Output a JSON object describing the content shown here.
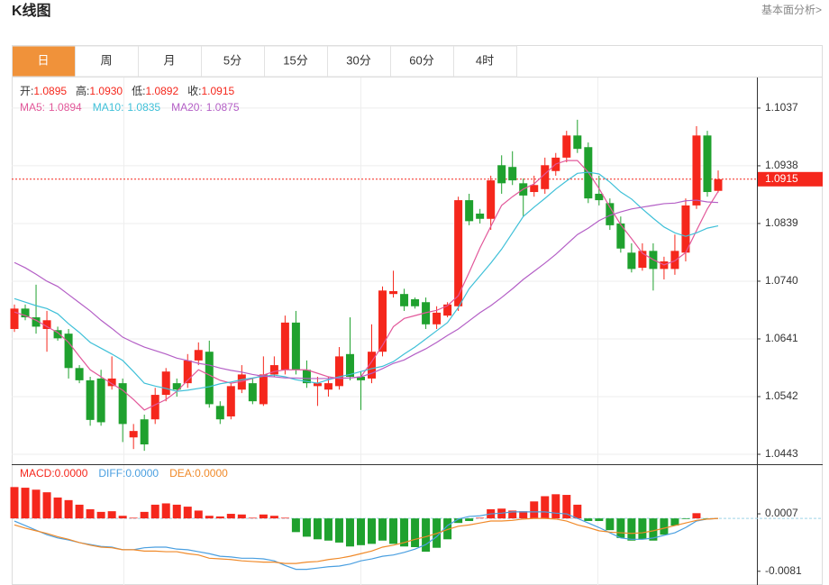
{
  "header": {
    "title": "K线图",
    "link": "基本面分析>"
  },
  "tabs": {
    "items": [
      "日",
      "周",
      "月",
      "5分",
      "15分",
      "30分",
      "60分",
      "4时"
    ],
    "active": 0
  },
  "chart_data": [
    {
      "type": "candlestick",
      "up_color": "#f5271c",
      "down_color": "#1fa12e",
      "ylim": [
        1.0426,
        1.1091
      ],
      "yticks": [
        1.0443,
        1.0542,
        1.0641,
        {
          "value": 1.074,
          "label": "1.0740"
        },
        1.0839,
        1.0938,
        1.1037
      ],
      "grid": true,
      "ohlc_info": [
        {
          "name": "开:",
          "value": 1.0895
        },
        {
          "name": "高:",
          "value": 1.093,
          "value_label": "1.0930"
        },
        {
          "name": "低:",
          "value": 1.0892
        },
        {
          "name": "收:",
          "value": 1.0915
        }
      ],
      "last_price": 1.0915,
      "open": [
        1.0658,
        1.0693,
        1.0678,
        1.0658,
        1.0656,
        1.065,
        1.0591,
        1.057,
        1.0573,
        1.056,
        1.0565,
        1.0472,
        1.0503,
        1.0503,
        1.0545,
        1.0565,
        1.0565,
        1.0604,
        1.0619,
        1.0526,
        1.0508,
        1.0554,
        1.0565,
        1.0529,
        1.058,
        1.0588,
        1.0669,
        1.0588,
        1.056,
        1.0554,
        1.056,
        1.0615,
        1.0576,
        1.0573,
        1.0619,
        1.0718,
        1.0718,
        1.0709,
        1.0704,
        1.0666,
        1.0681,
        1.0697,
        1.0879,
        1.0856,
        1.0847,
        1.0939,
        1.0936,
        1.0908,
        1.0893,
        1.0898,
        1.0929,
        1.0952,
        1.099,
        1.097,
        1.089,
        1.0874,
        1.0839,
        1.0789,
        1.0763,
        1.0792,
        1.0761,
        1.0761,
        1.0789,
        1.087,
        1.099,
        1.0895
      ],
      "high": [
        1.07,
        1.07,
        1.0734,
        1.0689,
        1.0662,
        1.0658,
        1.0596,
        1.0576,
        1.0588,
        1.0611,
        1.0573,
        1.0495,
        1.0511,
        1.0557,
        1.0591,
        1.0573,
        1.0615,
        1.0635,
        1.0638,
        1.0534,
        1.0565,
        1.0596,
        1.0573,
        1.0611,
        1.0611,
        1.0681,
        1.0689,
        1.0604,
        1.0576,
        1.0576,
        1.0627,
        1.0678,
        1.0585,
        1.0666,
        1.0731,
        1.0758,
        1.0727,
        1.0712,
        1.0712,
        1.0697,
        1.0704,
        1.0885,
        1.089,
        1.0864,
        1.0921,
        1.0956,
        1.0963,
        1.0916,
        1.0921,
        1.0952,
        1.096,
        1.0998,
        1.1017,
        1.0978,
        1.0921,
        1.0882,
        1.0851,
        1.0805,
        1.0805,
        1.0805,
        1.0782,
        1.082,
        1.0882,
        1.1006,
        1.0998,
        1.093
      ],
      "low": [
        1.0653,
        1.0673,
        1.065,
        1.0619,
        1.0638,
        1.0573,
        1.0565,
        1.0492,
        1.0492,
        1.0554,
        1.0464,
        1.0452,
        1.0449,
        1.0495,
        1.0534,
        1.0542,
        1.0557,
        1.0596,
        1.0523,
        1.0495,
        1.0503,
        1.0548,
        1.0529,
        1.0526,
        1.0576,
        1.058,
        1.058,
        1.0557,
        1.0526,
        1.0542,
        1.0554,
        1.057,
        1.0519,
        1.0565,
        1.0611,
        1.0712,
        1.0689,
        1.0693,
        1.0658,
        1.0658,
        1.0678,
        1.0689,
        1.0836,
        1.0839,
        1.0828,
        1.089,
        1.0905,
        1.0851,
        1.0885,
        1.089,
        1.0921,
        1.0944,
        1.096,
        1.0874,
        1.087,
        1.0828,
        1.0789,
        1.0755,
        1.0758,
        1.0724,
        1.0743,
        1.0751,
        1.0774,
        1.0864,
        1.0885,
        1.0892
      ],
      "close": [
        1.0693,
        1.0678,
        1.0662,
        1.0673,
        1.0642,
        1.0591,
        1.057,
        1.0502,
        1.0498,
        1.0573,
        1.0495,
        1.0483,
        1.046,
        1.0545,
        1.0585,
        1.0554,
        1.0604,
        1.0622,
        1.0529,
        1.0503,
        1.056,
        1.058,
        1.0534,
        1.058,
        1.0596,
        1.0669,
        1.0588,
        1.0565,
        1.0565,
        1.0565,
        1.0611,
        1.0576,
        1.057,
        1.0619,
        1.0724,
        1.0723,
        1.0697,
        1.0697,
        1.0666,
        1.0686,
        1.07,
        1.0879,
        1.0843,
        1.0847,
        1.0913,
        1.0908,
        1.0913,
        1.0887,
        1.0905,
        1.0939,
        1.0952,
        1.099,
        1.0967,
        1.0882,
        1.0879,
        1.0836,
        1.0796,
        1.0761,
        1.0792,
        1.0761,
        1.0774,
        1.0792,
        1.087,
        1.099,
        1.0893,
        1.0915
      ],
      "lines": [
        {
          "name": "MA5:",
          "color": "#e2589a",
          "current": 1.0894,
          "values": [
            1.0687,
            1.0681,
            1.0673,
            1.0662,
            1.0652,
            1.0635,
            1.0611,
            1.0588,
            1.0576,
            1.0564,
            1.0553,
            1.0537,
            1.0519,
            1.0528,
            1.0537,
            1.0551,
            1.057,
            1.0588,
            1.0579,
            1.057,
            1.0565,
            1.0568,
            1.0573,
            1.0579,
            1.0585,
            1.0588,
            1.0588,
            1.0588,
            1.0582,
            1.0576,
            1.0573,
            1.0574,
            1.0576,
            1.0602,
            1.063,
            1.0662,
            1.0676,
            1.0681,
            1.0686,
            1.069,
            1.0698,
            1.0715,
            1.0755,
            1.0797,
            1.0834,
            1.087,
            1.0885,
            1.0898,
            1.0907,
            1.0924,
            1.0941,
            1.0947,
            1.0947,
            1.0927,
            1.0899,
            1.0867,
            1.0837,
            1.0813,
            1.0788,
            1.0777,
            1.0768,
            1.0775,
            1.0789,
            1.0827,
            1.0864,
            1.0894
          ]
        },
        {
          "name": "MA10:",
          "color": "#3fc0d8",
          "current": 1.0835,
          "values": [
            1.071,
            1.0704,
            1.0698,
            1.0693,
            1.0684,
            1.0667,
            1.0652,
            1.0635,
            1.0625,
            1.0615,
            1.0604,
            1.0585,
            1.0565,
            1.056,
            1.0556,
            1.0551,
            1.0553,
            1.0556,
            1.0559,
            1.0564,
            1.0567,
            1.0571,
            1.0574,
            1.0577,
            1.0579,
            1.0576,
            1.0571,
            1.0568,
            1.0565,
            1.0571,
            1.0576,
            1.058,
            1.0585,
            1.059,
            1.0594,
            1.0602,
            1.0615,
            1.0627,
            1.0641,
            1.0655,
            1.0669,
            1.0695,
            1.0727,
            1.0749,
            1.0771,
            1.0795,
            1.0823,
            1.0851,
            1.0867,
            1.0882,
            1.0898,
            1.0912,
            1.0925,
            1.0927,
            1.0924,
            1.091,
            1.0893,
            1.0881,
            1.0864,
            1.0848,
            1.0833,
            1.0823,
            1.0817,
            1.0823,
            1.0831,
            1.0835
          ]
        },
        {
          "name": "MA20:",
          "color": "#b45fc6",
          "current": 1.0875,
          "values": [
            1.0772,
            1.0763,
            1.0752,
            1.074,
            1.0731,
            1.0717,
            1.0703,
            1.0689,
            1.0673,
            1.0659,
            1.0644,
            1.0635,
            1.0627,
            1.0621,
            1.0615,
            1.0608,
            1.0604,
            1.0599,
            1.0596,
            1.0591,
            1.0587,
            1.0584,
            1.058,
            1.0577,
            1.0576,
            1.0574,
            1.0574,
            1.0573,
            1.0573,
            1.0573,
            1.0574,
            1.0574,
            1.0576,
            1.0582,
            1.059,
            1.0599,
            1.0605,
            1.0615,
            1.0624,
            1.0635,
            1.0647,
            1.0658,
            1.0672,
            1.0686,
            1.0698,
            1.0712,
            1.0727,
            1.0743,
            1.0757,
            1.0771,
            1.0786,
            1.0803,
            1.082,
            1.0831,
            1.0844,
            1.0853,
            1.0859,
            1.0864,
            1.0867,
            1.087,
            1.0873,
            1.0874,
            1.0878,
            1.0879,
            1.0876,
            1.0875
          ]
        }
      ]
    },
    {
      "type": "macd",
      "name": "MACD:",
      "current": 0,
      "current_label": "0.0000",
      "up_color": "#f5271c",
      "down_color": "#1fa12e",
      "ylim": [
        -0.0102,
        0.0083
      ],
      "yticks": [
        -0.0081,
        0.0007
      ],
      "grid": false,
      "values": [
        0.0048,
        0.0047,
        0.0044,
        0.004,
        0.0032,
        0.0028,
        0.0021,
        0.0014,
        0.001,
        0.0011,
        0.0004,
        0.0001,
        0.001,
        0.0021,
        0.0023,
        0.0021,
        0.0018,
        0.0012,
        0.0004,
        0.0003,
        0.0007,
        0.0006,
        0.0001,
        0.0006,
        0.0004,
        0.0001,
        -0.0021,
        -0.0028,
        -0.0032,
        -0.0034,
        -0.0037,
        -0.0043,
        -0.0041,
        -0.0039,
        -0.0034,
        -0.0039,
        -0.0043,
        -0.0044,
        -0.0051,
        -0.0045,
        -0.0032,
        -0.0007,
        -0.0004,
        0.0001,
        0.0014,
        0.0015,
        0.0012,
        0.0011,
        0.0026,
        0.0034,
        0.0037,
        0.0036,
        0.0021,
        -0.0004,
        -0.0004,
        -0.0018,
        -0.003,
        -0.0034,
        -0.0032,
        -0.0034,
        -0.0025,
        -0.0011,
        -0.0001,
        0.0008,
        -0.0001,
        0
      ],
      "lines": [
        {
          "name": "DIFF:",
          "color": "#4a9fe0",
          "current": 0,
          "current_label": "0.0000",
          "values": [
            -0.0004,
            -0.0011,
            -0.0018,
            -0.0025,
            -0.003,
            -0.0033,
            -0.0037,
            -0.004,
            -0.0043,
            -0.0044,
            -0.0048,
            -0.0048,
            -0.0045,
            -0.0044,
            -0.0044,
            -0.0047,
            -0.0048,
            -0.0051,
            -0.0054,
            -0.0058,
            -0.0059,
            -0.0061,
            -0.0061,
            -0.0062,
            -0.0065,
            -0.0072,
            -0.0078,
            -0.0078,
            -0.0076,
            -0.0074,
            -0.0073,
            -0.007,
            -0.0065,
            -0.0062,
            -0.0058,
            -0.0056,
            -0.0052,
            -0.0047,
            -0.004,
            -0.0028,
            -0.0011,
            -0.0001,
            0.0003,
            0.0004,
            0.0007,
            0.0008,
            0.001,
            0.001,
            0.001,
            0.001,
            0.0008,
            0.0007,
            0,
            -0.0007,
            -0.0014,
            -0.0022,
            -0.003,
            -0.0032,
            -0.0032,
            -0.003,
            -0.0026,
            -0.0022,
            -0.0014,
            -0.0004,
            -0.0001,
            0
          ]
        },
        {
          "name": "DEA:",
          "color": "#f08a2a",
          "current": 0,
          "current_label": "0.0000",
          "values": [
            -0.001,
            -0.0015,
            -0.0019,
            -0.0023,
            -0.0028,
            -0.0032,
            -0.0037,
            -0.0041,
            -0.0044,
            -0.0045,
            -0.0048,
            -0.0048,
            -0.005,
            -0.005,
            -0.0051,
            -0.0051,
            -0.0054,
            -0.0056,
            -0.0061,
            -0.0062,
            -0.0063,
            -0.0065,
            -0.0066,
            -0.0067,
            -0.0067,
            -0.0069,
            -0.0069,
            -0.0067,
            -0.0066,
            -0.0063,
            -0.0061,
            -0.0058,
            -0.0054,
            -0.005,
            -0.0044,
            -0.0041,
            -0.0037,
            -0.0032,
            -0.0028,
            -0.0023,
            -0.0017,
            -0.0012,
            -0.001,
            -0.0007,
            -0.0004,
            -0.0004,
            -0.0003,
            -0.0001,
            0,
            0,
            -0.0001,
            -0.0004,
            -0.001,
            -0.0014,
            -0.0019,
            -0.0021,
            -0.0022,
            -0.0023,
            -0.0022,
            -0.0019,
            -0.0015,
            -0.0011,
            -0.0007,
            -0.0003,
            -0.0001,
            0
          ]
        }
      ]
    }
  ]
}
